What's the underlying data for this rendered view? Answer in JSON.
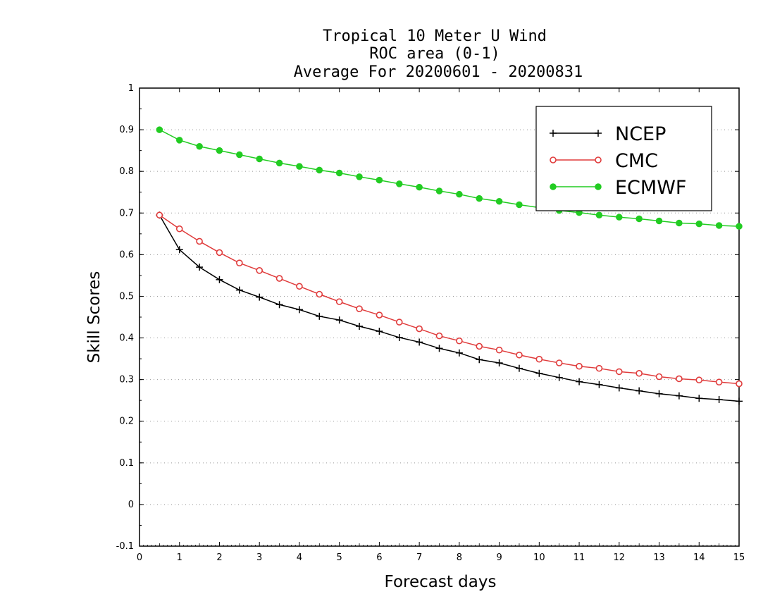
{
  "chart_data": {
    "type": "line",
    "title_lines": [
      "Tropical 10 Meter U Wind",
      "ROC area (0-1)",
      "Average For 20200601 - 20200831"
    ],
    "xlabel": "Forecast days",
    "ylabel": "Skill Scores",
    "xlim": [
      0,
      15
    ],
    "ylim": [
      -0.1,
      1
    ],
    "x_ticks": [
      0,
      1,
      2,
      3,
      4,
      5,
      6,
      7,
      8,
      9,
      10,
      11,
      12,
      13,
      14,
      15
    ],
    "x_tick_labels": [
      "0",
      "1",
      "2",
      "3",
      "4",
      "5",
      "6",
      "7",
      "8",
      "9",
      "10",
      "11",
      "12",
      "13",
      "14",
      "15"
    ],
    "y_ticks": [
      -0.1,
      0,
      0.1,
      0.2,
      0.3,
      0.4,
      0.5,
      0.6,
      0.7,
      0.8,
      0.9,
      1
    ],
    "y_tick_labels": [
      "-0.1",
      "0",
      "0.1",
      "0.2",
      "0.3",
      "0.4",
      "0.5",
      "0.6",
      "0.7",
      "0.8",
      "0.9",
      "1"
    ],
    "grid": true,
    "legend_position": "top-right",
    "x": [
      0.5,
      1,
      1.5,
      2,
      2.5,
      3,
      3.5,
      4,
      4.5,
      5,
      5.5,
      6,
      6.5,
      7,
      7.5,
      8,
      8.5,
      9,
      9.5,
      10,
      10.5,
      11,
      11.5,
      12,
      12.5,
      13,
      13.5,
      14,
      14.5,
      15
    ],
    "series": [
      {
        "name": "NCEP",
        "color": "#000000",
        "marker": "plus",
        "values": [
          0.695,
          0.612,
          0.57,
          0.54,
          0.515,
          0.498,
          0.48,
          0.468,
          0.452,
          0.443,
          0.428,
          0.416,
          0.401,
          0.39,
          0.375,
          0.364,
          0.348,
          0.34,
          0.327,
          0.315,
          0.305,
          0.295,
          0.288,
          0.28,
          0.273,
          0.266,
          0.261,
          0.255,
          0.252,
          0.248
        ]
      },
      {
        "name": "CMC",
        "color": "#e03c3c",
        "marker": "open-circle",
        "values": [
          0.695,
          0.662,
          0.632,
          0.605,
          0.58,
          0.562,
          0.543,
          0.524,
          0.505,
          0.487,
          0.47,
          0.455,
          0.438,
          0.422,
          0.405,
          0.393,
          0.38,
          0.371,
          0.359,
          0.349,
          0.34,
          0.332,
          0.327,
          0.319,
          0.315,
          0.307,
          0.302,
          0.299,
          0.294,
          0.29
        ]
      },
      {
        "name": "ECMWF",
        "color": "#22cc22",
        "marker": "filled-circle",
        "values": [
          0.9,
          0.875,
          0.86,
          0.85,
          0.84,
          0.83,
          0.82,
          0.812,
          0.803,
          0.796,
          0.787,
          0.779,
          0.77,
          0.762,
          0.753,
          0.745,
          0.735,
          0.728,
          0.72,
          0.713,
          0.706,
          0.701,
          0.695,
          0.69,
          0.686,
          0.681,
          0.676,
          0.674,
          0.67,
          0.668
        ]
      }
    ]
  }
}
